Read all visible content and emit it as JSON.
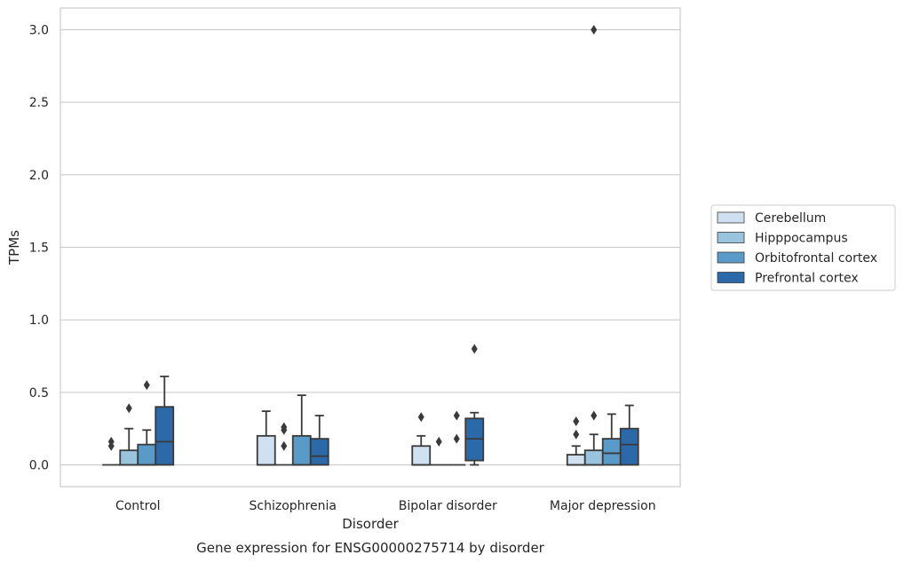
{
  "chart_data": {
    "type": "boxplot",
    "title": "Gene expression for ENSG00000275714 by disorder",
    "xlabel": "Disorder",
    "ylabel": "TPMs",
    "ylim": [
      -0.15,
      3.15
    ],
    "yticks": [
      "0.0",
      "0.5",
      "1.0",
      "1.5",
      "2.0",
      "2.5",
      "3.0"
    ],
    "grid": "horizontal",
    "legend_position": "right",
    "categories": [
      "Control",
      "Schizophrenia",
      "Bipolar disorder",
      "Major depression"
    ],
    "series": [
      {
        "name": "Cerebellum",
        "color": "#cfe0f1",
        "boxes": [
          {
            "q1": 0.0,
            "median": 0.0,
            "q3": 0.0,
            "whisker_low": 0.0,
            "whisker_high": 0.0,
            "outliers": [
              0.16,
              0.13
            ]
          },
          {
            "q1": 0.0,
            "median": 0.0,
            "q3": 0.2,
            "whisker_low": 0.0,
            "whisker_high": 0.37,
            "outliers": []
          },
          {
            "q1": 0.0,
            "median": 0.0,
            "q3": 0.13,
            "whisker_low": 0.0,
            "whisker_high": 0.2,
            "outliers": [
              0.33
            ]
          },
          {
            "q1": 0.0,
            "median": 0.0,
            "q3": 0.07,
            "whisker_low": 0.0,
            "whisker_high": 0.13,
            "outliers": [
              0.3,
              0.21
            ]
          }
        ]
      },
      {
        "name": "Hipppocampus",
        "color": "#9ac4de",
        "boxes": [
          {
            "q1": 0.0,
            "median": 0.0,
            "q3": 0.1,
            "whisker_low": 0.0,
            "whisker_high": 0.25,
            "outliers": [
              0.39
            ]
          },
          {
            "q1": 0.0,
            "median": 0.0,
            "q3": 0.0,
            "whisker_low": 0.0,
            "whisker_high": 0.0,
            "outliers": [
              0.26,
              0.24,
              0.13
            ]
          },
          {
            "q1": 0.0,
            "median": 0.0,
            "q3": 0.0,
            "whisker_low": 0.0,
            "whisker_high": 0.0,
            "outliers": [
              0.16
            ]
          },
          {
            "q1": 0.0,
            "median": 0.0,
            "q3": 0.1,
            "whisker_low": 0.0,
            "whisker_high": 0.21,
            "outliers": [
              0.34,
              3.0
            ]
          }
        ]
      },
      {
        "name": "Orbitofrontal cortex",
        "color": "#5a9ac8",
        "boxes": [
          {
            "q1": 0.0,
            "median": 0.0,
            "q3": 0.14,
            "whisker_low": 0.0,
            "whisker_high": 0.24,
            "outliers": [
              0.55
            ]
          },
          {
            "q1": 0.0,
            "median": 0.0,
            "q3": 0.2,
            "whisker_low": 0.0,
            "whisker_high": 0.48,
            "outliers": []
          },
          {
            "q1": 0.0,
            "median": 0.0,
            "q3": 0.0,
            "whisker_low": 0.0,
            "whisker_high": 0.0,
            "outliers": [
              0.34,
              0.18
            ]
          },
          {
            "q1": 0.0,
            "median": 0.08,
            "q3": 0.18,
            "whisker_low": 0.0,
            "whisker_high": 0.35,
            "outliers": []
          }
        ]
      },
      {
        "name": "Prefrontal cortex",
        "color": "#2b69a9",
        "boxes": [
          {
            "q1": 0.0,
            "median": 0.16,
            "q3": 0.4,
            "whisker_low": 0.0,
            "whisker_high": 0.61,
            "outliers": []
          },
          {
            "q1": 0.0,
            "median": 0.06,
            "q3": 0.18,
            "whisker_low": 0.0,
            "whisker_high": 0.34,
            "outliers": []
          },
          {
            "q1": 0.03,
            "median": 0.18,
            "q3": 0.32,
            "whisker_low": 0.0,
            "whisker_high": 0.36,
            "outliers": [
              0.8
            ]
          },
          {
            "q1": 0.0,
            "median": 0.14,
            "q3": 0.25,
            "whisker_low": 0.0,
            "whisker_high": 0.41,
            "outliers": []
          }
        ]
      }
    ]
  }
}
